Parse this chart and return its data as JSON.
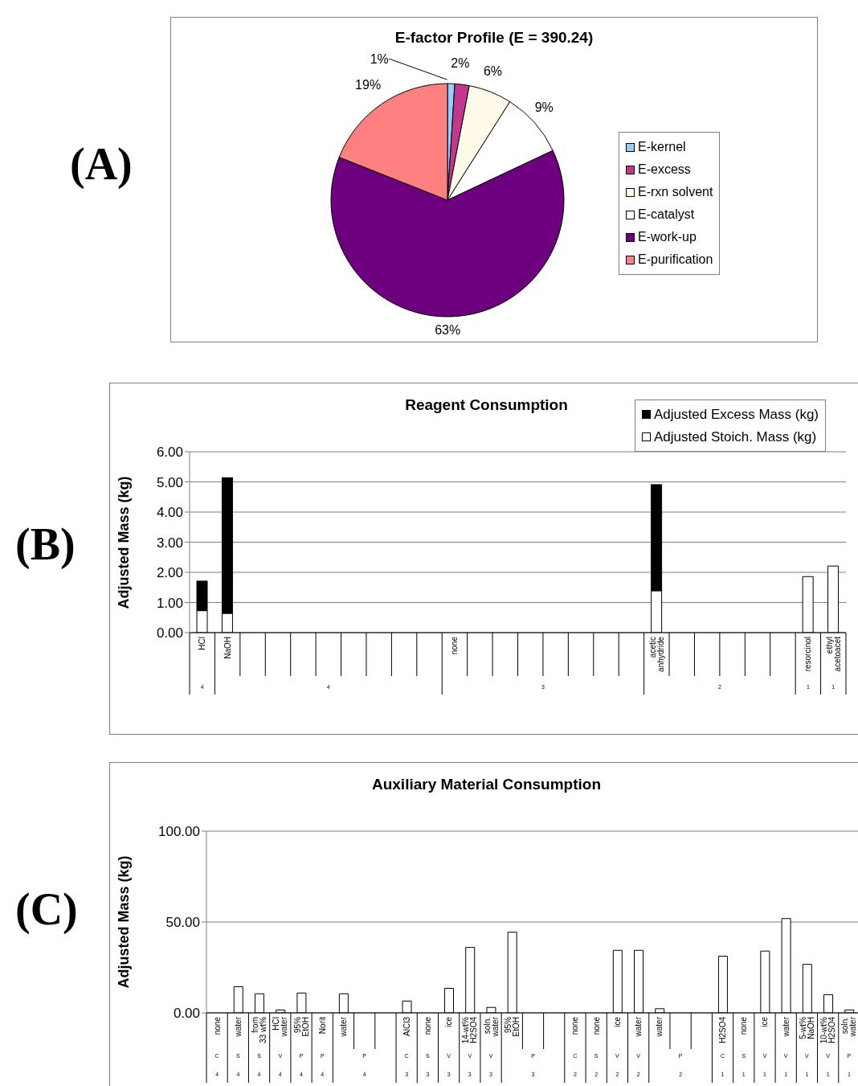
{
  "chart_data": [
    {
      "type": "pie",
      "title": "E-factor Profile (E = 390.24)",
      "categories": [
        "E-kernel",
        "E-excess",
        "E-rxn solvent",
        "E-catalyst",
        "E-work-up",
        "E-purification"
      ],
      "values": [
        1,
        2,
        6,
        9,
        63,
        19
      ],
      "colors": [
        "#99ccff",
        "#c0398f",
        "#fffbe8",
        "#ffffff",
        "#6e0080",
        "#ff8080"
      ],
      "value_labels": [
        "1%",
        "2%",
        "6%",
        "9%",
        "63%",
        "19%"
      ],
      "legend": "right",
      "annotations": [
        "(A)"
      ]
    },
    {
      "type": "bar",
      "stacked": true,
      "title": "Reagent Consumption",
      "ylabel": "Adjusted Mass (kg)",
      "categories": [
        "HCl",
        "NaOH",
        null,
        null,
        null,
        null,
        null,
        null,
        null,
        null,
        "none",
        null,
        null,
        null,
        null,
        null,
        null,
        null,
        "acetic anhydride",
        null,
        null,
        null,
        null,
        null,
        "resorcinol",
        "ethyl acetoacet"
      ],
      "series": [
        {
          "name": "Adjusted Stoich. Mass (kg)",
          "color": "#ffffff",
          "values": [
            0.73,
            0.64,
            null,
            null,
            null,
            null,
            null,
            null,
            null,
            null,
            null,
            null,
            null,
            null,
            null,
            null,
            null,
            null,
            1.39,
            null,
            null,
            null,
            null,
            null,
            1.86,
            2.21
          ]
        },
        {
          "name": "Adjusted Excess Mass (kg)",
          "color": "#000000",
          "values": [
            0.98,
            4.5,
            null,
            null,
            null,
            null,
            null,
            null,
            null,
            null,
            null,
            null,
            null,
            null,
            null,
            null,
            null,
            null,
            3.52,
            null,
            null,
            null,
            null,
            null,
            null,
            null
          ]
        }
      ],
      "ylim": [
        0,
        6
      ],
      "yticks": [
        {
          "value": 0,
          "label": "0.00"
        },
        {
          "value": 1,
          "label": "1.00"
        },
        {
          "value": 2,
          "label": "2.00"
        },
        {
          "value": 3,
          "label": "3.00"
        },
        {
          "value": 4,
          "label": "4.00"
        },
        {
          "value": 5,
          "label": "5.00"
        },
        {
          "value": 6,
          "label": "6.00"
        }
      ],
      "grid": "y",
      "legend": "top right",
      "annotations": [
        "(B)",
        "4",
        "4",
        "3",
        "2",
        "1",
        "1"
      ]
    },
    {
      "type": "bar",
      "title": "Auxiliary Material Consumption",
      "ylabel": "Adjusted Mass (kg)",
      "categories": [
        "none",
        "water",
        "from 33 wt%",
        "HCl water",
        "95% EtOH",
        "Norit",
        "water",
        null,
        null,
        "AlCl3",
        "none",
        "ice",
        "14-wt% H2SO4",
        "soln. water",
        "95% EtOH",
        null,
        null,
        "none",
        "none",
        "ice",
        "water",
        "water",
        null,
        null,
        "H2SO4",
        "none",
        "ice",
        "water",
        "5-wt% NaOH",
        "10-wt% H2SO4",
        "soln. water"
      ],
      "values": [
        null,
        14.4,
        10.5,
        1.6,
        10.9,
        null,
        10.5,
        null,
        null,
        6.5,
        null,
        13.5,
        36.0,
        3.0,
        44.4,
        null,
        null,
        null,
        null,
        34.4,
        34.4,
        2.3,
        null,
        null,
        31.2,
        null,
        34.0,
        51.9,
        26.7,
        10.0,
        1.6
      ],
      "color": "#ffffff",
      "ylim": [
        0,
        100
      ],
      "yticks": [
        {
          "value": 0,
          "label": "0.00"
        },
        {
          "value": 50,
          "label": "50.00"
        },
        {
          "value": 100,
          "label": "100.00"
        }
      ],
      "grid": "y",
      "annotations": [
        "(C)",
        "C",
        "S",
        "S",
        "V",
        "P",
        "P",
        "P",
        "C",
        "S",
        "V",
        "V",
        "V",
        "P",
        "C",
        "S",
        "V",
        "V",
        "P",
        "C",
        "S",
        "V",
        "V",
        "V",
        "V",
        "P",
        "4",
        "4",
        "4",
        "4",
        "4",
        "4",
        "4",
        "3",
        "3",
        "3",
        "3",
        "3",
        "3",
        "2",
        "2",
        "2",
        "2",
        "2",
        "1",
        "1",
        "1",
        "1",
        "1",
        "1",
        "1"
      ]
    }
  ]
}
